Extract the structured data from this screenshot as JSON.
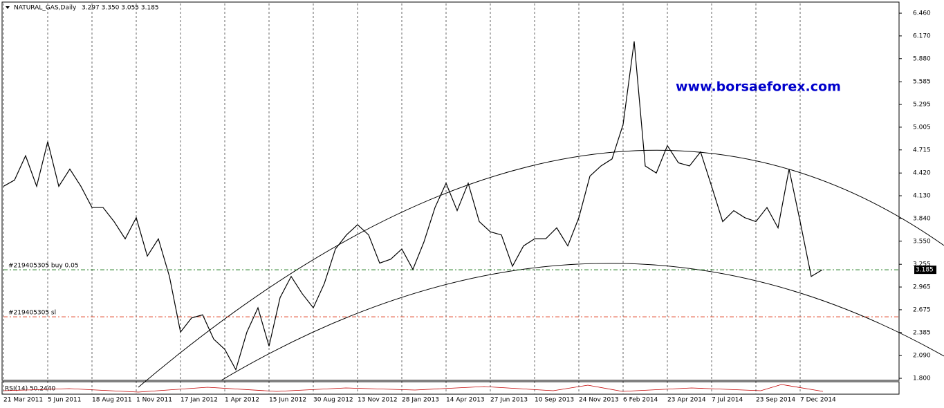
{
  "chart_data": {
    "type": "line",
    "title": "NATURAL_GAS,Daily",
    "ohlc": "3.297 3.350 3.055 3.185",
    "watermark": "www.borsaeforex.com",
    "color": "#000000",
    "categories": [
      "21 Mar 2011",
      null,
      null,
      null,
      "5 Jun 2011",
      null,
      null,
      null,
      "18 Aug 2011",
      null,
      null,
      null,
      "1 Nov 2011",
      null,
      null,
      null,
      "17 Jan 2012",
      null,
      null,
      null,
      "1 Apr 2012",
      null,
      null,
      null,
      "15 Jun 2012",
      null,
      null,
      null,
      "30 Aug 2012",
      null,
      null,
      null,
      "13 Nov 2012",
      null,
      null,
      null,
      "28 Jan 2013",
      null,
      null,
      null,
      "14 Apr 2013",
      null,
      null,
      null,
      "27 Jun 2013",
      null,
      null,
      null,
      "10 Sep 2013",
      null,
      null,
      null,
      "24 Nov 2013",
      null,
      null,
      null,
      "6 Feb 2014",
      null,
      null,
      null,
      "23 Apr 2014",
      null,
      null,
      null,
      "7 Jul 2014",
      null,
      null,
      null,
      "23 Sep 2014",
      null,
      null,
      null,
      "7 Dec 2014",
      null,
      null
    ],
    "values": [
      4.25,
      4.33,
      4.64,
      4.25,
      4.82,
      4.25,
      4.47,
      4.25,
      3.98,
      3.98,
      3.8,
      3.58,
      3.85,
      3.36,
      3.58,
      3.1,
      2.39,
      2.57,
      2.61,
      2.3,
      2.17,
      1.91,
      2.39,
      2.7,
      2.21,
      2.83,
      3.1,
      2.88,
      2.7,
      3.01,
      3.45,
      3.63,
      3.76,
      3.63,
      3.27,
      3.32,
      3.45,
      3.19,
      3.54,
      3.98,
      4.29,
      3.94,
      4.29,
      3.8,
      3.67,
      3.63,
      3.23,
      3.49,
      3.58,
      3.58,
      3.72,
      3.49,
      3.85,
      4.38,
      4.51,
      4.6,
      5.04,
      6.1,
      4.51,
      4.42,
      4.77,
      4.55,
      4.51,
      4.69,
      4.25,
      3.8,
      3.94,
      3.85,
      3.8,
      3.98,
      3.72,
      4.47,
      3.8,
      3.1,
      3.185
    ],
    "ylim": [
      1.774,
      6.584
    ],
    "yticks": [
      {
        "value": 6.46,
        "label": "6.460"
      },
      {
        "value": 6.17,
        "label": "6.170"
      },
      {
        "value": 5.88,
        "label": "5.880"
      },
      5.585,
      5.295,
      {
        "value": 5.005,
        "label": "5.005"
      },
      4.715,
      {
        "value": 4.42,
        "label": "4.420"
      },
      {
        "value": 4.13,
        "label": "4.130"
      },
      {
        "value": 3.84,
        "label": "3.840"
      },
      {
        "value": 3.55,
        "label": "3.550"
      },
      3.255,
      2.965,
      2.675,
      2.385,
      {
        "value": 2.09,
        "label": "2.090"
      },
      {
        "value": 1.8,
        "label": "1.800"
      }
    ],
    "last_price": 3.185,
    "levels": [
      {
        "label": "#219405305 buy 0.05",
        "value": 3.185,
        "color": "#1a7a1a"
      },
      {
        "label": "#219405305 sl",
        "value": 2.585,
        "color": "#e04020"
      }
    ],
    "indicator_label": "RSI(14) 50.2440",
    "grid": true
  }
}
